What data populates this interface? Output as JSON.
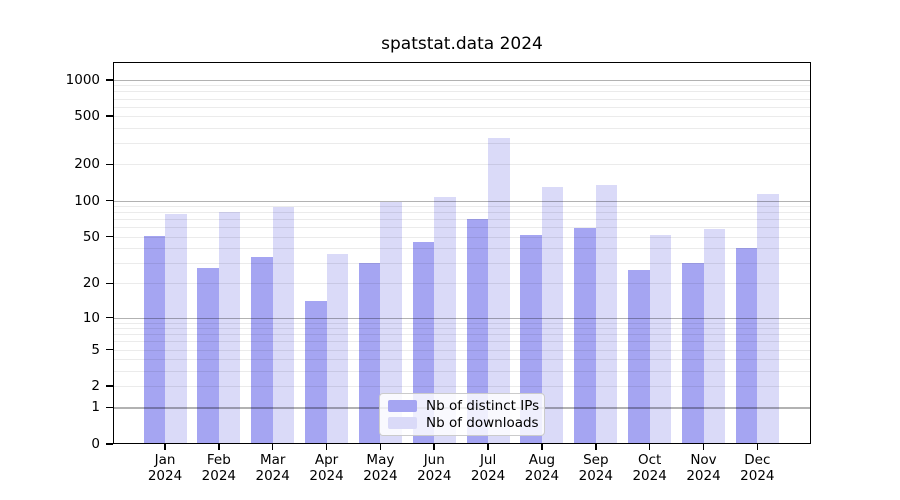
{
  "chart_data": {
    "type": "bar",
    "title": "spatstat.data 2024",
    "x_months": [
      "Jan",
      "Feb",
      "Mar",
      "Apr",
      "May",
      "Jun",
      "Jul",
      "Aug",
      "Sep",
      "Oct",
      "Nov",
      "Dec"
    ],
    "x_year": "2024",
    "y_ticks": [
      0,
      1,
      2,
      5,
      10,
      20,
      50,
      100,
      200,
      500,
      1000
    ],
    "y_scale": "log1p",
    "ylim": [
      0,
      1400
    ],
    "grid": true,
    "legend_position": "bottom-center",
    "series": [
      {
        "name": "Nb of distinct IPs",
        "color": "#a5a5f2",
        "values": [
          51,
          27,
          34,
          14,
          30,
          45,
          71,
          52,
          59,
          26,
          30,
          40
        ]
      },
      {
        "name": "Nb of downloads",
        "color": "#dadaf8",
        "values": [
          78,
          81,
          88,
          36,
          97,
          108,
          333,
          129,
          135,
          52,
          58,
          114
        ]
      }
    ]
  },
  "colors": {
    "background": "#ffffff",
    "frame": "#000000",
    "major_grid": "rgba(0,0,0,0.30)",
    "minor_grid": "rgba(0,0,0,0.08)",
    "text": "#000000"
  }
}
